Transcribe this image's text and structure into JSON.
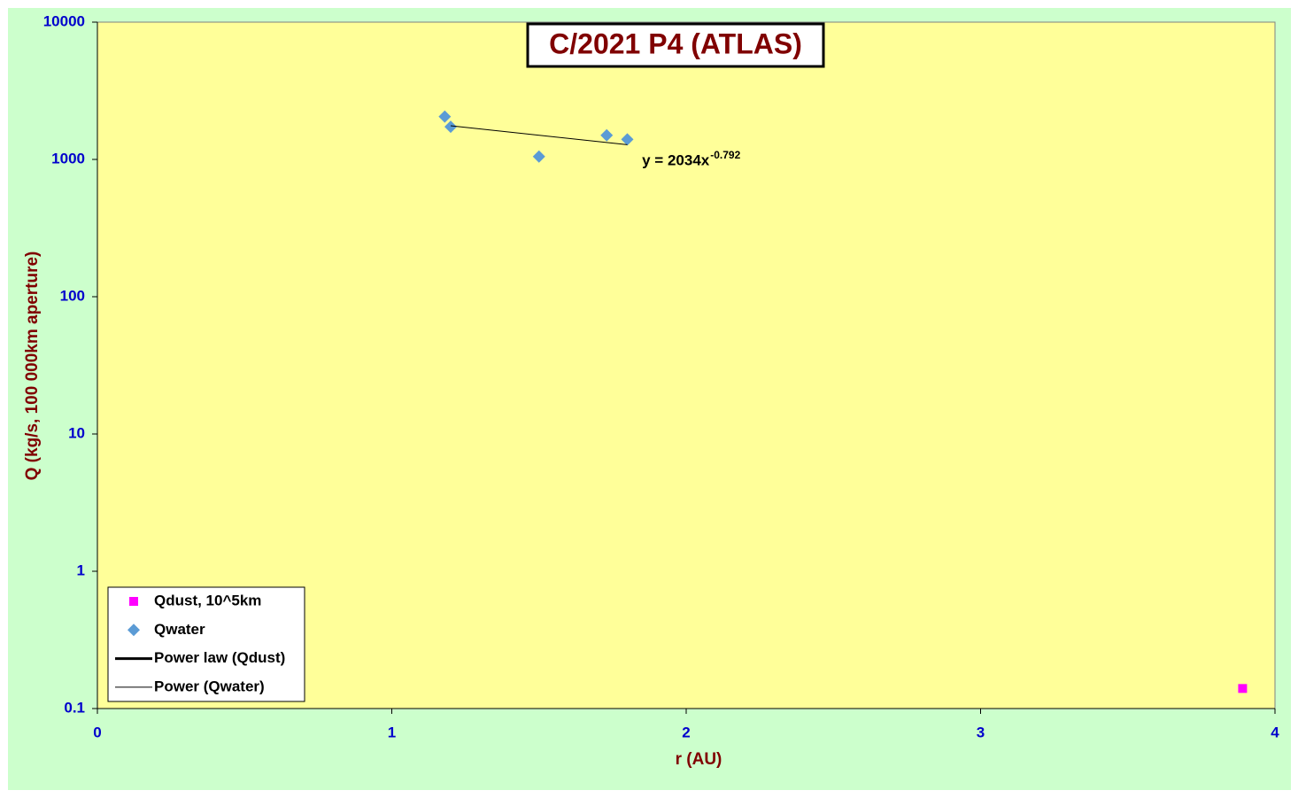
{
  "chart_data": {
    "type": "scatter",
    "title": "C/2021 P4 (ATLAS)",
    "x_label": "r (AU)",
    "y_label": "Q (kg/s, 100 000km aperture)",
    "xlim": [
      0,
      4
    ],
    "xticks": [
      0,
      1,
      2,
      3,
      4
    ],
    "ylim": [
      0.1,
      10000
    ],
    "yticks": [
      0.1,
      1,
      10,
      100,
      1000,
      10000
    ],
    "y_scale": "log",
    "legend": "lower left",
    "series": [
      {
        "name": "Qdust, 10^5km",
        "kind": "points",
        "marker": "square",
        "color": "#ff00ff",
        "x": [
          3.89
        ],
        "values": [
          0.14
        ]
      },
      {
        "name": "Qwater",
        "kind": "points",
        "marker": "diamond",
        "color": "#5b9bd5",
        "x": [
          1.18,
          1.2,
          1.5,
          1.73,
          1.8
        ],
        "values": [
          2050,
          1730,
          1050,
          1500,
          1400
        ]
      },
      {
        "name": "Power law (Qdust)",
        "kind": "line",
        "color": "#000000",
        "width": 3,
        "x": [],
        "values": []
      },
      {
        "name": "Power (Qwater)",
        "kind": "line",
        "color": "#000000",
        "width": 1,
        "x": [
          1.2,
          1.8
        ],
        "values": [
          1760,
          1280
        ]
      }
    ],
    "annotations": [
      {
        "text": "y = 2034x",
        "superscript": "-0.792",
        "x": 1.85,
        "y": 1000
      }
    ]
  }
}
